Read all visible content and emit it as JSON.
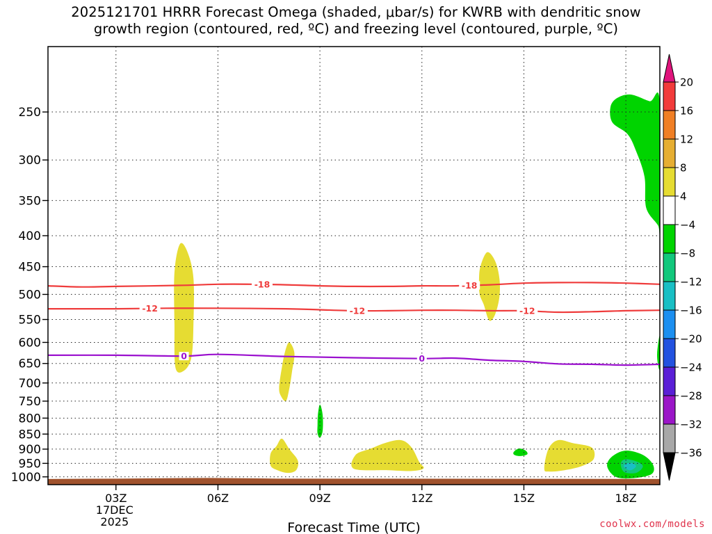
{
  "chart_data": {
    "type": "heatmap",
    "title": "2025121701 HRRR Forecast Omega (shaded, μbar/s) for KWRB with dendritic snow\ngrowth region (contoured, red, ºC) and freezing level (contoured, purple, ºC)",
    "xlabel": "Forecast Time (UTC)",
    "ylabel": "",
    "credit": "coolwx.com/models",
    "x_axis": {
      "unit": "hours since 2025-12-17 00Z",
      "range": [
        1,
        19
      ],
      "ticks": [
        {
          "x": 3,
          "label": "03Z",
          "sub": [
            "17DEC",
            "2025"
          ]
        },
        {
          "x": 6,
          "label": "06Z"
        },
        {
          "x": 9,
          "label": "09Z"
        },
        {
          "x": 12,
          "label": "12Z"
        },
        {
          "x": 15,
          "label": "15Z"
        },
        {
          "x": 18,
          "label": "18Z"
        }
      ]
    },
    "y_axis": {
      "unit": "hPa",
      "scale": "log",
      "reversed": true,
      "range": [
        1030,
        195
      ],
      "ticks": [
        250,
        300,
        350,
        400,
        450,
        500,
        550,
        600,
        650,
        700,
        750,
        800,
        850,
        900,
        950,
        1000
      ]
    },
    "grid": true,
    "colorbar": {
      "unit": "μbar/s",
      "labels": [
        "20",
        "16",
        "12",
        "8",
        "4",
        "−4",
        "−8",
        "−12",
        "−16",
        "−20",
        "−24",
        "−28",
        "−32",
        "−36"
      ],
      "bins": [
        {
          "lo": 16,
          "hi": 20,
          "color": "#f23b3b"
        },
        {
          "lo": 12,
          "hi": 16,
          "color": "#f07f25"
        },
        {
          "lo": 8,
          "hi": 12,
          "color": "#e6ae32"
        },
        {
          "lo": 4,
          "hi": 8,
          "color": "#e6dc32"
        },
        {
          "lo": -4,
          "hi": 4,
          "color": "#ffffff"
        },
        {
          "lo": -8,
          "hi": -4,
          "color": "#00d400"
        },
        {
          "lo": -12,
          "hi": -8,
          "color": "#12c87c"
        },
        {
          "lo": -16,
          "hi": -12,
          "color": "#19bfc4"
        },
        {
          "lo": -20,
          "hi": -16,
          "color": "#1c8ff0"
        },
        {
          "lo": -24,
          "hi": -20,
          "color": "#2352e0"
        },
        {
          "lo": -28,
          "hi": -24,
          "color": "#5a1fd6"
        },
        {
          "lo": -32,
          "hi": -28,
          "color": "#9b16c8"
        },
        {
          "lo": -36,
          "hi": -32,
          "color": "#a8a8a8"
        }
      ],
      "over_color": "#e0147c",
      "under_color": "#000000"
    },
    "ground": {
      "level_hPa": 1008,
      "color": "#a0522d"
    },
    "contours": [
      {
        "label": "-18",
        "color": "#ef3b3b",
        "points": [
          [
            1,
            484
          ],
          [
            2,
            486
          ],
          [
            3,
            485
          ],
          [
            5,
            483
          ],
          [
            6,
            481
          ],
          [
            7,
            481
          ],
          [
            8,
            482
          ],
          [
            9,
            484
          ],
          [
            10,
            485
          ],
          [
            11,
            485
          ],
          [
            12,
            484
          ],
          [
            13,
            484
          ],
          [
            14,
            482
          ],
          [
            15,
            479
          ],
          [
            16,
            478
          ],
          [
            17,
            478
          ],
          [
            18,
            479
          ],
          [
            19,
            481
          ]
        ],
        "label_x": [
          7.3,
          13.4
        ]
      },
      {
        "label": "-12",
        "color": "#ef3b3b",
        "points": [
          [
            1,
            528
          ],
          [
            3,
            528
          ],
          [
            4.5,
            527
          ],
          [
            6,
            527
          ],
          [
            8,
            528
          ],
          [
            9,
            530
          ],
          [
            10,
            532
          ],
          [
            11,
            532
          ],
          [
            12,
            531
          ],
          [
            13,
            531
          ],
          [
            14,
            532
          ],
          [
            15,
            532
          ],
          [
            16,
            535
          ],
          [
            17,
            534
          ],
          [
            18,
            532
          ],
          [
            19,
            531
          ]
        ],
        "label_x": [
          4.0,
          10.1,
          15.1
        ]
      },
      {
        "label": "0",
        "color": "#9a0fce",
        "points": [
          [
            1,
            630
          ],
          [
            3,
            630
          ],
          [
            5,
            632
          ],
          [
            6,
            628
          ],
          [
            8,
            633
          ],
          [
            10,
            636
          ],
          [
            12,
            638
          ],
          [
            13,
            637
          ],
          [
            14,
            642
          ],
          [
            15,
            645
          ],
          [
            16,
            651
          ],
          [
            17,
            652
          ],
          [
            18,
            654
          ],
          [
            19,
            652
          ]
        ],
        "label_x": [
          5.0,
          12.0
        ]
      }
    ],
    "regions": [
      {
        "value_bin": "4 to 8",
        "color": "#e6dc32",
        "points": [
          [
            4.75,
            660
          ],
          [
            4.72,
            560
          ],
          [
            4.72,
            460
          ],
          [
            4.88,
            413
          ],
          [
            5.1,
            425
          ],
          [
            5.28,
            470
          ],
          [
            5.28,
            560
          ],
          [
            5.22,
            635
          ],
          [
            5.0,
            668
          ]
        ]
      },
      {
        "value_bin": "4 to 8",
        "color": "#e6dc32",
        "points": [
          [
            7.8,
            712
          ],
          [
            7.88,
            660
          ],
          [
            7.98,
            620
          ],
          [
            8.1,
            600
          ],
          [
            8.25,
            625
          ],
          [
            8.18,
            670
          ],
          [
            8.1,
            715
          ],
          [
            8.0,
            750
          ],
          [
            7.85,
            735
          ]
        ]
      },
      {
        "value_bin": "-8 to -4",
        "color": "#00d400",
        "points": [
          [
            8.93,
            820
          ],
          [
            8.94,
            790
          ],
          [
            9.0,
            760
          ],
          [
            9.08,
            790
          ],
          [
            9.08,
            840
          ],
          [
            9.0,
            862
          ],
          [
            8.93,
            848
          ]
        ]
      },
      {
        "value_bin": "4 to 8",
        "color": "#e6dc32",
        "points": [
          [
            7.55,
            958
          ],
          [
            7.55,
            915
          ],
          [
            7.72,
            890
          ],
          [
            7.88,
            865
          ],
          [
            8.1,
            900
          ],
          [
            8.35,
            940
          ],
          [
            8.3,
            975
          ],
          [
            8.05,
            985
          ],
          [
            7.75,
            975
          ]
        ]
      },
      {
        "value_bin": "4 to 8",
        "color": "#e6dc32",
        "points": [
          [
            10.0,
            970
          ],
          [
            10.05,
            920
          ],
          [
            10.5,
            898
          ],
          [
            10.95,
            878
          ],
          [
            11.4,
            870
          ],
          [
            11.7,
            895
          ],
          [
            11.92,
            945
          ],
          [
            12.05,
            968
          ],
          [
            11.7,
            978
          ],
          [
            11.0,
            975
          ]
        ]
      },
      {
        "value_bin": "4 to 8",
        "color": "#e6dc32",
        "points": [
          [
            13.68,
            475
          ],
          [
            13.72,
            450
          ],
          [
            13.92,
            426
          ],
          [
            14.15,
            440
          ],
          [
            14.28,
            470
          ],
          [
            14.28,
            505
          ],
          [
            14.15,
            540
          ],
          [
            13.98,
            552
          ],
          [
            13.82,
            520
          ],
          [
            13.7,
            500
          ]
        ]
      },
      {
        "value_bin": "-8 to -4",
        "color": "#00d400",
        "points": [
          [
            14.7,
            910
          ],
          [
            14.85,
            898
          ],
          [
            15.05,
            905
          ],
          [
            15.1,
            918
          ],
          [
            14.9,
            924
          ],
          [
            14.72,
            920
          ]
        ]
      },
      {
        "value_bin": "4 to 8",
        "color": "#e6dc32",
        "points": [
          [
            15.6,
            970
          ],
          [
            15.72,
            900
          ],
          [
            16.0,
            870
          ],
          [
            16.45,
            880
          ],
          [
            17.0,
            895
          ],
          [
            17.05,
            935
          ],
          [
            16.7,
            960
          ],
          [
            16.2,
            975
          ],
          [
            15.75,
            980
          ]
        ]
      },
      {
        "value_bin": "-8 to -4",
        "color": "#00d400",
        "points": [
          [
            17.45,
            960
          ],
          [
            17.6,
            925
          ],
          [
            18.0,
            905
          ],
          [
            18.5,
            920
          ],
          [
            18.8,
            955
          ],
          [
            18.75,
            990
          ],
          [
            18.2,
            1005
          ],
          [
            17.7,
            1000
          ]
        ]
      },
      {
        "value_bin": "-12 to -8",
        "color": "#12c87c",
        "points": [
          [
            17.85,
            950
          ],
          [
            18.0,
            935
          ],
          [
            18.35,
            945
          ],
          [
            18.5,
            962
          ],
          [
            18.3,
            985
          ],
          [
            17.95,
            982
          ]
        ]
      },
      {
        "value_bin": "-16 to -12",
        "color": "#19bfc4",
        "points": [
          [
            17.95,
            955
          ],
          [
            18.15,
            948
          ],
          [
            18.3,
            960
          ],
          [
            18.15,
            975
          ],
          [
            17.98,
            968
          ]
        ]
      },
      {
        "value_bin": "-8 to -4",
        "color": "#00d400",
        "points": [
          [
            19.0,
            398
          ],
          [
            18.95,
            385
          ],
          [
            18.6,
            360
          ],
          [
            18.55,
            320
          ],
          [
            18.3,
            290
          ],
          [
            18.05,
            272
          ],
          [
            17.6,
            260
          ],
          [
            17.55,
            245
          ],
          [
            17.75,
            237
          ],
          [
            18.15,
            234
          ],
          [
            18.7,
            240
          ],
          [
            19.0,
            241
          ]
        ]
      },
      {
        "value_bin": "-8 to -4",
        "color": "#00d400",
        "points": [
          [
            19.0,
            585
          ],
          [
            18.92,
            625
          ],
          [
            18.95,
            655
          ],
          [
            19.0,
            660
          ]
        ]
      }
    ]
  }
}
